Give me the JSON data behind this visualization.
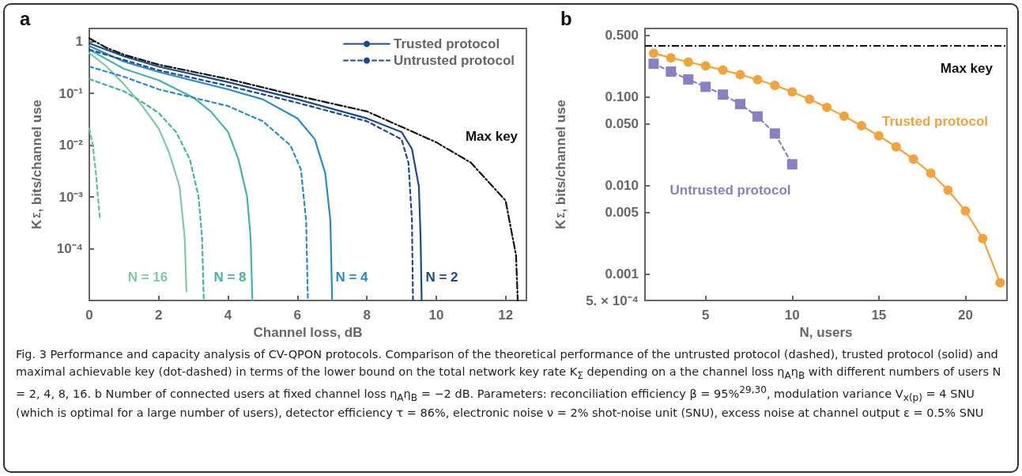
{
  "chart_data": [
    {
      "type": "line",
      "title": "a",
      "xlabel": "Channel loss, dB",
      "ylabel": "K$_{Σ}$, bits/channel use",
      "log": "y",
      "grid": false,
      "legend": "top right",
      "xlim": [
        0,
        12.6
      ],
      "xticks": [
        0,
        2,
        4,
        6,
        8,
        10,
        12
      ],
      "ylim": [
        1e-05,
        1.8
      ],
      "yticks": [
        {
          "value": 1,
          "label": "1"
        },
        {
          "value": 0.1,
          "label": "10⁻¹"
        },
        {
          "value": 0.01,
          "label": "10⁻²"
        },
        {
          "value": 0.001,
          "label": "10⁻³"
        },
        {
          "value": 0.0001,
          "label": "10⁻⁴"
        }
      ],
      "series": [
        {
          "color": "#80c9a3",
          "line_style": "solid",
          "x": [
            0,
            0.5,
            1,
            1.5,
            2,
            2.3,
            2.6,
            2.75,
            2.8
          ],
          "values": [
            0.6,
            0.33,
            0.15,
            0.061,
            0.021,
            0.0072,
            0.0016,
            0.00016,
            1.5e-05
          ]
        },
        {
          "color": "#5fbfae",
          "line_style": "dashed",
          "x": [
            0,
            0.1,
            0.2,
            0.3
          ],
          "values": [
            0.021,
            0.01,
            0.0025,
            0.0004
          ]
        },
        {
          "color": "#48b2a4",
          "line_style": "solid",
          "x": [
            0,
            1,
            2,
            3,
            3.5,
            4,
            4.3,
            4.55,
            4.65,
            4.7
          ],
          "values": [
            0.7,
            0.3,
            0.18,
            0.083,
            0.045,
            0.018,
            0.0053,
            0.001,
            0.00016,
            1e-05
          ]
        },
        {
          "color": "#48b2a4",
          "line_style": "dashed",
          "x": [
            0,
            1,
            1.5,
            2,
            2.5,
            2.9,
            3.15,
            3.25,
            3.3
          ],
          "values": [
            0.19,
            0.11,
            0.07,
            0.042,
            0.018,
            0.0053,
            0.001,
            0.00016,
            1e-05
          ]
        },
        {
          "color": "#2b8bc6",
          "line_style": "solid",
          "x": [
            0,
            1,
            2,
            4,
            5,
            6,
            6.5,
            6.8,
            6.95,
            7.0
          ],
          "values": [
            0.82,
            0.41,
            0.26,
            0.12,
            0.077,
            0.033,
            0.013,
            0.0029,
            0.00035,
            1e-05
          ]
        },
        {
          "color": "#2b8bc6",
          "line_style": "dashed",
          "x": [
            0,
            1,
            2,
            4,
            5,
            5.8,
            6.1,
            6.25,
            6.3
          ],
          "values": [
            0.33,
            0.21,
            0.12,
            0.057,
            0.029,
            0.0099,
            0.0034,
            0.00035,
            1e-05
          ]
        },
        {
          "name": "Trusted protocol",
          "color": "#1c4a8c",
          "line_style": "solid",
          "x": [
            0,
            1,
            2,
            4,
            6,
            8,
            9,
            9.3,
            9.5,
            9.55,
            9.58
          ],
          "values": [
            0.93,
            0.52,
            0.33,
            0.165,
            0.077,
            0.033,
            0.018,
            0.0085,
            0.0016,
            0.00016,
            1e-05
          ]
        },
        {
          "name": "Untrusted protocol",
          "color": "#1c4a8c",
          "line_style": "dashed",
          "x": [
            0,
            2,
            4,
            6,
            8,
            9,
            9.2,
            9.3,
            9.33
          ],
          "values": [
            0.7,
            0.28,
            0.14,
            0.066,
            0.029,
            0.013,
            0.0046,
            0.00035,
            1e-05
          ]
        },
        {
          "color": "#111111",
          "line_style": "dashdot",
          "x": [
            0,
            0.5,
            1,
            2,
            4,
            6,
            8,
            10,
            11,
            12,
            12.3,
            12.35
          ],
          "values": [
            1.16,
            0.76,
            0.56,
            0.36,
            0.19,
            0.09,
            0.045,
            0.0114,
            0.0046,
            0.00085,
            7.5e-05,
            1e-05
          ]
        }
      ],
      "annotations": [
        "N = 16",
        "N = 8",
        "N = 4",
        "N = 2",
        "Max key",
        "Fig. 3 Performance and capacity analysis of CV-QPON protocols. Comparison of the theoretical performance of the untrusted protocol (dashed), trusted protocol (solid) and maximal achievable key (dot-dashed) in terms of the lower bound on the total network key rate K$_{Σ}$ depending on a the channel loss η$_{A}$η$_{B}$ with different numbers of users N = 2, 4, 8, 16. b Number of connected users at fixed channel loss η$_{A}$η$_{B}$ = −2 dB. Parameters: reconciliation efficiency β = 95%$^{29,30}$, modulation variance V$_{x(p)}$ = 4 SNU (which is optimal for a large number of users), detector efficiency τ = 86%, electronic noise ν = 2% shot-noise unit (SNU), excess noise at channel output ε = 0.5% SNU"
      ]
    },
    {
      "type": "line",
      "title": "b",
      "xlabel": "N, users",
      "ylabel": "K$_{Σ}$, bits/channel use",
      "log": "y",
      "grid": false,
      "legend": false,
      "xlim": [
        1.5,
        22.4
      ],
      "xticks": [
        5,
        10,
        15,
        20
      ],
      "ylim": [
        0.0005,
        0.6
      ],
      "yticks": [
        {
          "value": 0.5,
          "label": "0.500"
        },
        {
          "value": 0.1,
          "label": "0.100"
        },
        {
          "value": 0.05,
          "label": "0.050"
        },
        {
          "value": 0.01,
          "label": "0.010"
        },
        {
          "value": 0.005,
          "label": "0.005"
        },
        {
          "value": 0.001,
          "label": "0.001"
        },
        {
          "value": 0.0005,
          "label": "5. × 10⁻⁴"
        }
      ],
      "series": [
        {
          "name": "Trusted protocol",
          "color": "#f0a33f",
          "marker": "circle",
          "line_style": "solid",
          "x": [
            2,
            3,
            4,
            5,
            6,
            7,
            8,
            9,
            10,
            11,
            12,
            13,
            14,
            15,
            16,
            17,
            18,
            19,
            20,
            21,
            22
          ],
          "values": [
            0.314,
            0.279,
            0.25,
            0.226,
            0.203,
            0.18,
            0.158,
            0.136,
            0.115,
            0.0947,
            0.0766,
            0.061,
            0.0475,
            0.0366,
            0.0274,
            0.0199,
            0.0138,
            0.00885,
            0.00515,
            0.00251,
            0.000796
          ]
        },
        {
          "name": "Untrusted protocol",
          "color": "#8a7fc0",
          "marker": "square",
          "line_style": "dashed",
          "x": [
            2,
            3,
            4,
            5,
            6,
            7,
            8,
            9,
            10
          ],
          "values": [
            0.239,
            0.195,
            0.159,
            0.131,
            0.107,
            0.0835,
            0.0605,
            0.0388,
            0.0174
          ]
        }
      ],
      "ref_lines": [
        {
          "axis": "y",
          "value": 0.38,
          "label": "Max key",
          "color": "#111111",
          "line_style": "dashdot"
        }
      ]
    }
  ]
}
